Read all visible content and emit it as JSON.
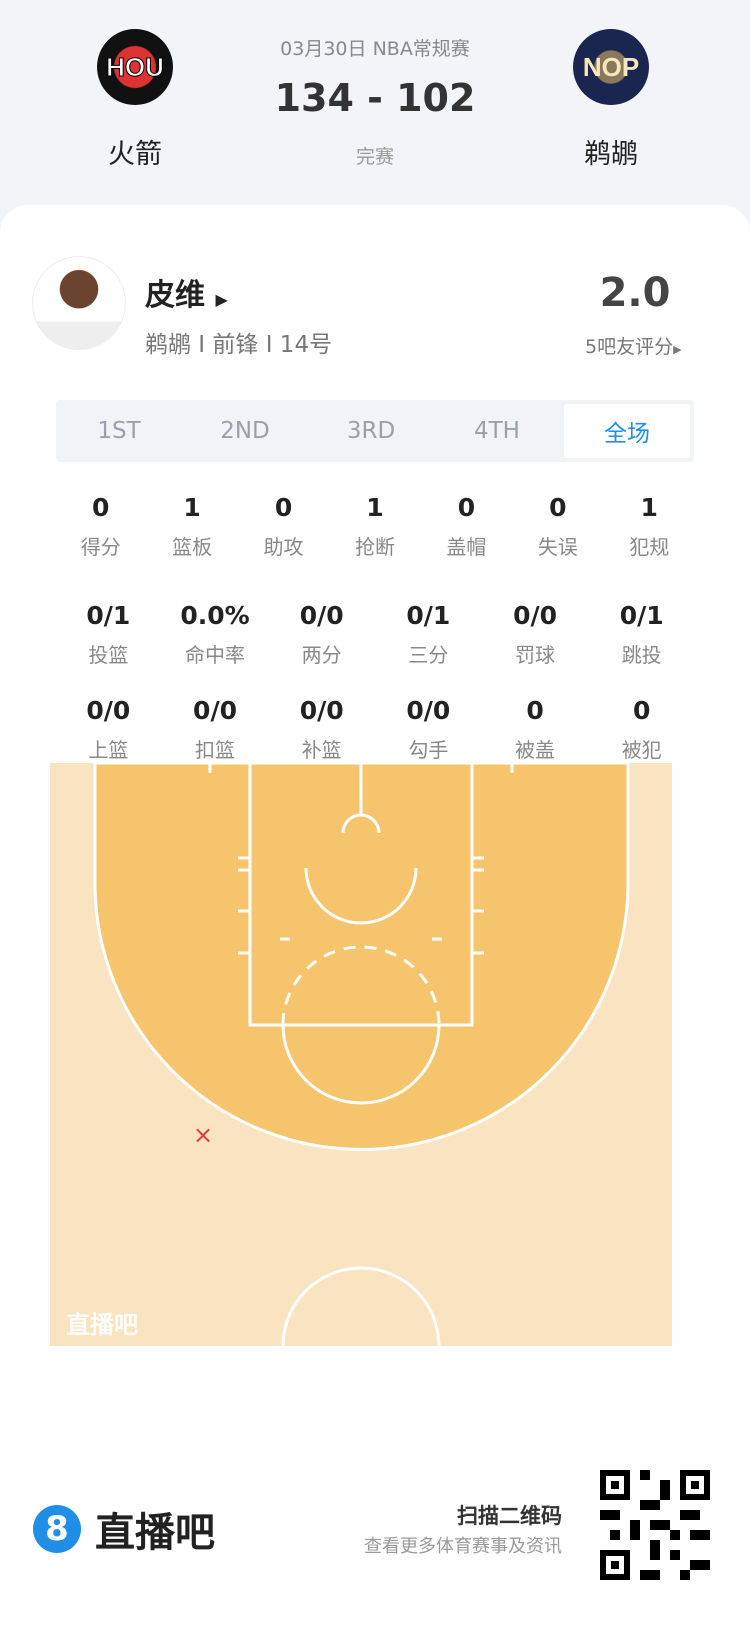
{
  "header": {
    "date_league": "03月30日 NBA常规赛",
    "score": "134 - 102",
    "status": "完赛",
    "home": {
      "abbr": "HOU",
      "name": "火箭"
    },
    "away": {
      "abbr": "NOP",
      "name": "鹈鹕"
    }
  },
  "player": {
    "name": "皮维",
    "info": "鹈鹕 I 前锋 I 14号",
    "rating": "2.0",
    "rating_label": "5吧友评分"
  },
  "tabs": [
    {
      "label": "1ST"
    },
    {
      "label": "2ND"
    },
    {
      "label": "3RD"
    },
    {
      "label": "4TH"
    },
    {
      "label": "全场",
      "active": true
    }
  ],
  "stats_row1": [
    {
      "v": "0",
      "l": "得分"
    },
    {
      "v": "1",
      "l": "篮板"
    },
    {
      "v": "0",
      "l": "助攻"
    },
    {
      "v": "1",
      "l": "抢断"
    },
    {
      "v": "0",
      "l": "盖帽"
    },
    {
      "v": "0",
      "l": "失误"
    },
    {
      "v": "1",
      "l": "犯规"
    }
  ],
  "stats_row2": [
    {
      "v": "0/1",
      "l": "投篮"
    },
    {
      "v": "0.0%",
      "l": "命中率"
    },
    {
      "v": "0/0",
      "l": "两分"
    },
    {
      "v": "0/1",
      "l": "三分"
    },
    {
      "v": "0/0",
      "l": "罚球"
    },
    {
      "v": "0/1",
      "l": "跳投"
    }
  ],
  "stats_row3": [
    {
      "v": "0/0",
      "l": "上篮"
    },
    {
      "v": "0/0",
      "l": "扣篮"
    },
    {
      "v": "0/0",
      "l": "补篮"
    },
    {
      "v": "0/0",
      "l": "勾手"
    },
    {
      "v": "0",
      "l": "被盖"
    },
    {
      "v": "0",
      "l": "被犯"
    }
  ],
  "shot_chart": {
    "watermark": "直播吧",
    "shots": [
      {
        "result": "miss",
        "marker": "×"
      }
    ],
    "colors": {
      "court": "#f9e3c1",
      "paint": "#f5c46d",
      "miss": "#e23b3b"
    }
  },
  "footer": {
    "brand": "直播吧",
    "brand_icon": "8",
    "qr_title": "扫描二维码",
    "qr_sub": "查看更多体育赛事及资讯"
  },
  "colors": {
    "accent": "#1e8ee6"
  }
}
